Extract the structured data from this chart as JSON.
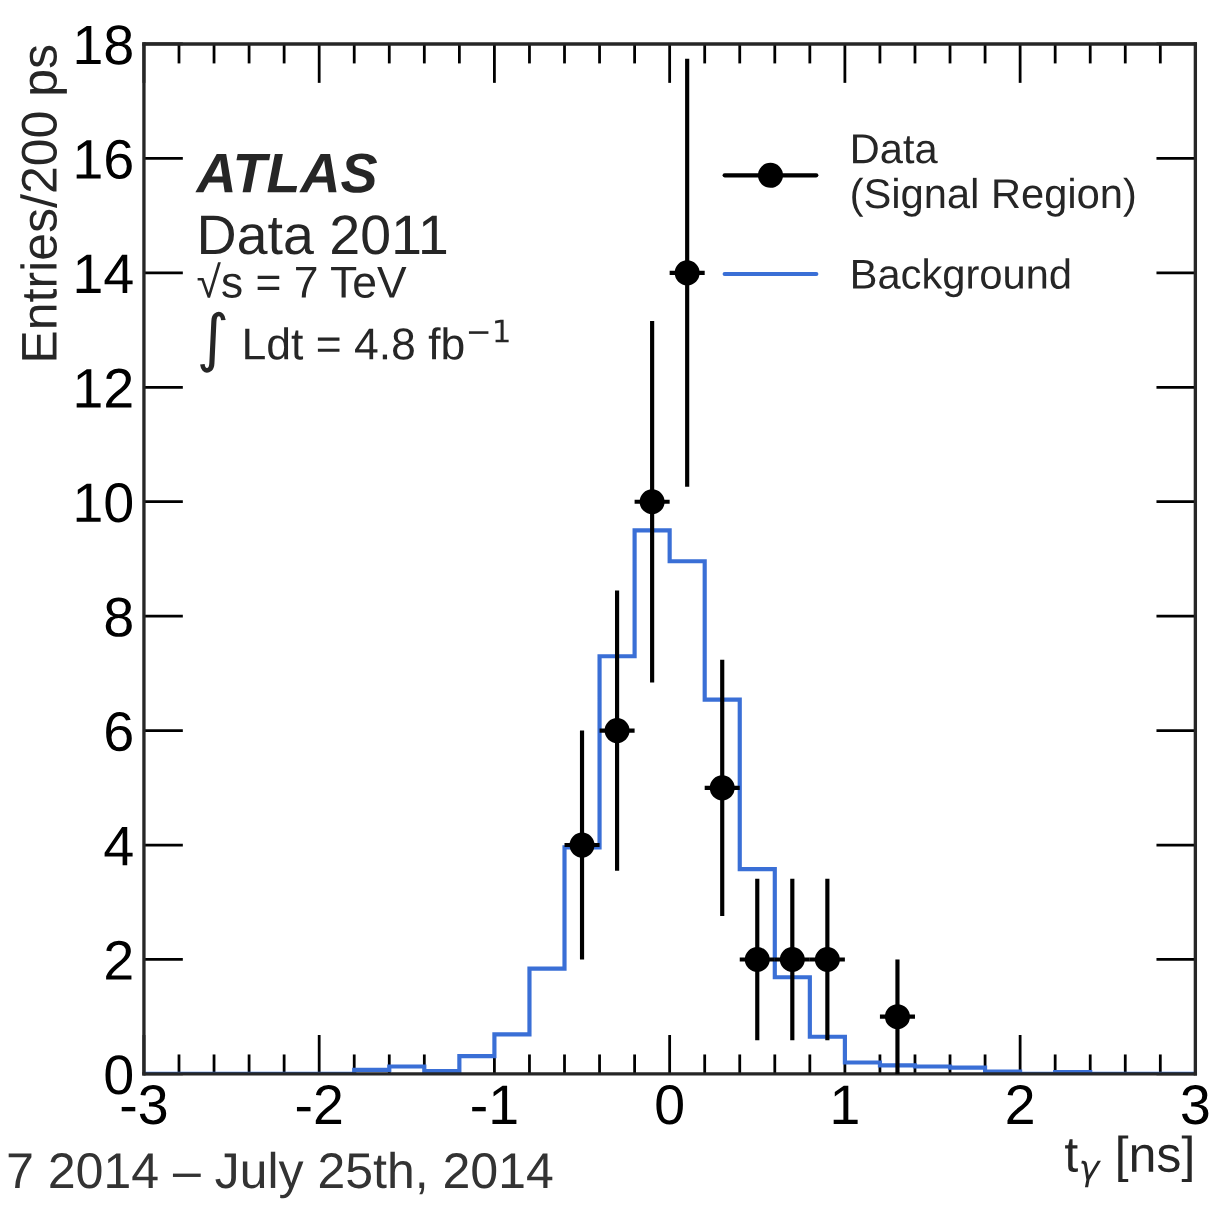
{
  "chart_data": {
    "type": "histogram",
    "xlabel": "t$_{γ}$ [ns]",
    "ylabel": "Entries/200 ps",
    "xlim": [
      -3,
      3
    ],
    "xticks": [
      -3,
      -2,
      -1,
      0,
      1,
      2,
      3
    ],
    "ylim": [
      0,
      18
    ],
    "yticks": [
      0,
      2,
      4,
      6,
      8,
      10,
      12,
      14,
      16,
      18
    ],
    "grid": false,
    "legend": "top right",
    "annotations": [
      "ATLAS",
      "Data 2011",
      "√s = 7 TeV",
      "∫ Ldt = 4.8 fb$^{−1}$",
      "7 2014 – July 25th, 2014"
    ],
    "series": [
      {
        "name": "Data\n(Signal Region)",
        "type": "scatter",
        "color": "#000000",
        "marker": "circle",
        "x": [
          -0.5,
          -0.3,
          -0.1,
          0.1,
          0.3,
          0.5,
          0.7,
          0.9,
          1.3
        ],
        "values": [
          4,
          6,
          10,
          14,
          5,
          2,
          2,
          2,
          1
        ],
        "errors": [
          2,
          2.45,
          3.16,
          3.74,
          2.24,
          1.41,
          1.41,
          1.41,
          1
        ],
        "xerrors": [
          0.1,
          0.1,
          0.1,
          0.1,
          0.1,
          0.1,
          0.1,
          0.1,
          0.1
        ]
      },
      {
        "name": "Background",
        "type": "histogram",
        "color": "#3a6fd6",
        "bins": [
          -3,
          -2.8,
          -2.6,
          -2.4,
          -2.2,
          -2,
          -1.8,
          -1.6,
          -1.4,
          -1.2,
          -1,
          -0.8,
          -0.6,
          -0.4,
          -0.2,
          0,
          0.2,
          0.4,
          0.6,
          0.8,
          1,
          1.2,
          1.4,
          1.6,
          1.8,
          2,
          2.2,
          2.4,
          2.6,
          2.8,
          3
        ],
        "values": [
          0,
          0,
          0,
          0,
          0,
          0,
          0.07,
          0.13,
          0.05,
          0.31,
          0.69,
          1.84,
          3.96,
          7.3,
          9.5,
          8.96,
          6.54,
          3.58,
          1.69,
          0.65,
          0.2,
          0.15,
          0.13,
          0.11,
          0.04,
          0,
          0.03,
          0,
          0,
          0
        ]
      }
    ]
  }
}
